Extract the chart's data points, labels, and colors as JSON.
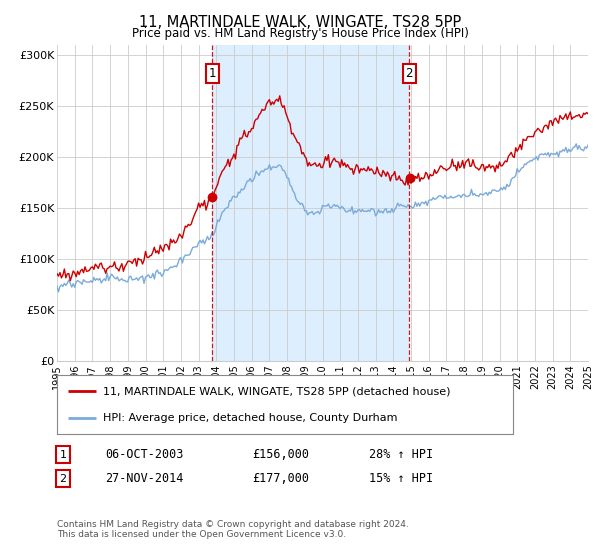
{
  "title": "11, MARTINDALE WALK, WINGATE, TS28 5PP",
  "subtitle": "Price paid vs. HM Land Registry's House Price Index (HPI)",
  "ylim": [
    0,
    310000
  ],
  "yticks": [
    0,
    50000,
    100000,
    150000,
    200000,
    250000,
    300000
  ],
  "ytick_labels": [
    "£0",
    "£50K",
    "£100K",
    "£150K",
    "£200K",
    "£250K",
    "£300K"
  ],
  "legend_line1": "11, MARTINDALE WALK, WINGATE, TS28 5PP (detached house)",
  "legend_line2": "HPI: Average price, detached house, County Durham",
  "annotation1_label": "1",
  "annotation1_date": "06-OCT-2003",
  "annotation1_price": "£156,000",
  "annotation1_hpi": "28% ↑ HPI",
  "annotation2_label": "2",
  "annotation2_date": "27-NOV-2014",
  "annotation2_price": "£177,000",
  "annotation2_hpi": "15% ↑ HPI",
  "footer": "Contains HM Land Registry data © Crown copyright and database right 2024.\nThis data is licensed under the Open Government Licence v3.0.",
  "line_color_red": "#cc0000",
  "line_color_blue": "#7aabdb",
  "shade_color": "#ddeeff",
  "annotation_color": "#cc0000",
  "background_color": "#ffffff",
  "grid_color": "#cccccc",
  "sale1_year": 2003.78,
  "sale1_value": 156000,
  "sale2_year": 2014.9,
  "sale2_value": 177000,
  "xmin": 1995,
  "xmax": 2025
}
